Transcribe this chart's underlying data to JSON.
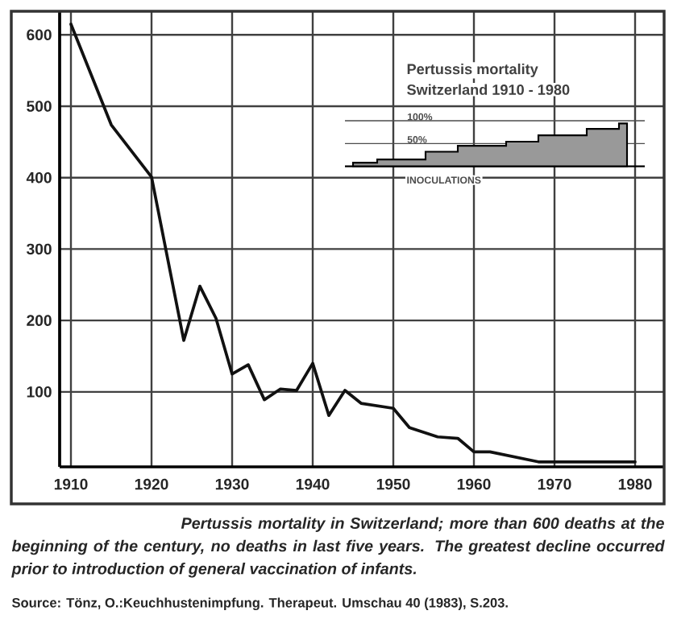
{
  "chart_data": [
    {
      "type": "line",
      "color": "#111111",
      "x": [
        1910,
        1915,
        1920,
        1924,
        1926,
        1928,
        1930,
        1932,
        1934,
        1936,
        1938,
        1940,
        1942,
        1944,
        1946,
        1950,
        1952,
        1955.5,
        1958,
        1960,
        1962,
        1968,
        1980
      ],
      "values": [
        615,
        474,
        401,
        172,
        248,
        203,
        125,
        138,
        89,
        104,
        102,
        140,
        67,
        102,
        84,
        77,
        50,
        37,
        35,
        16,
        16,
        2,
        2
      ],
      "xlim": [
        1908.6,
        1983.6
      ],
      "ylim": [
        -5,
        633
      ],
      "xticks": [
        1910,
        1920,
        1930,
        1940,
        1950,
        1960,
        1970,
        1980
      ],
      "yticks": [
        100,
        200,
        300,
        400,
        500,
        600
      ],
      "grid": true,
      "annotations": [
        "Pertussis mortality in Switzerland; more than 600 deaths at the beginning of the century, no deaths in last five years. The greatest decline occurred prior to introduction of general vaccination of infants.",
        "Source: Tönz, O.:Keuchhustenimpfung. Therapeut. Umschau 40 (1983), S.203."
      ]
    },
    {
      "type": "area",
      "color": "#999999",
      "title": "Pertussis mortality",
      "subtitle": "Switzerland 1910 - 1980",
      "xlabel": "INOCULATIONS",
      "categories": [
        null,
        null,
        null,
        null,
        null,
        null,
        null,
        null,
        null,
        null,
        null,
        null,
        null,
        null,
        null,
        null,
        null,
        null
      ],
      "values": [
        8,
        8,
        15,
        15,
        15,
        32,
        32,
        45,
        45,
        45,
        54,
        54,
        68,
        68,
        68,
        82,
        82,
        94
      ],
      "ylim": [
        0,
        100
      ],
      "yticks": [
        {
          "value": 50,
          "label": "50%"
        },
        {
          "value": 100,
          "label": "100%"
        }
      ],
      "grid": "y"
    }
  ]
}
